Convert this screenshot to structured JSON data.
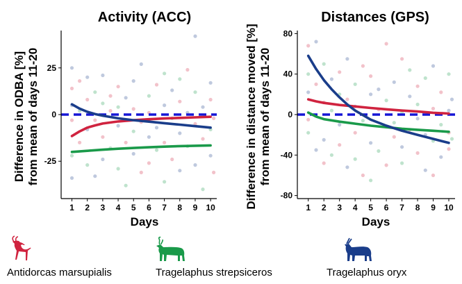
{
  "colors": {
    "antidorcas": "#d0233f",
    "strepsiceros": "#1a9a4a",
    "oryx": "#1a3d8a",
    "reference": "#1616d6"
  },
  "legend": {
    "items": [
      {
        "label": "Antidorcas marsupialis",
        "color": "#d0233f",
        "icon": "springbok-silhouette-icon"
      },
      {
        "label": "Tragelaphus strepsiceros",
        "color": "#1a9a4a",
        "icon": "kudu-silhouette-icon"
      },
      {
        "label": "Tragelaphus oryx",
        "color": "#1a3d8a",
        "icon": "eland-silhouette-icon"
      }
    ]
  },
  "chart_data": [
    {
      "type": "scatter",
      "title": "Activity (ACC)",
      "xlabel": "Days",
      "ylabel_lines": [
        "Difference in ODBA [%]",
        "from mean of days 11-20"
      ],
      "xlim": [
        0.3,
        10.4
      ],
      "ylim": [
        -45,
        45
      ],
      "x_ticks": [
        1,
        2,
        3,
        4,
        5,
        6,
        7,
        8,
        9,
        10
      ],
      "y_ticks": [
        -25,
        0,
        25
      ],
      "reference_line": 0,
      "series": [
        {
          "name": "Antidorcas marsupialis",
          "x": [
            1,
            1.5,
            2,
            2.5,
            3,
            4,
            5,
            6,
            7,
            8,
            9,
            10
          ],
          "y": [
            -11.5,
            -9,
            -7,
            -5.8,
            -4.8,
            -3.7,
            -3,
            -2.5,
            -2.1,
            -1.8,
            -1.5,
            -1.2
          ]
        },
        {
          "name": "Tragelaphus strepsiceros",
          "x": [
            1,
            2,
            3,
            4,
            5,
            6,
            7,
            8,
            9,
            10
          ],
          "y": [
            -20,
            -19.4,
            -18.8,
            -18.3,
            -17.9,
            -17.5,
            -17.2,
            -16.9,
            -16.7,
            -16.5
          ]
        },
        {
          "name": "Tragelaphus oryx",
          "x": [
            1,
            1.5,
            2,
            2.5,
            3,
            4,
            5,
            6,
            7,
            8,
            9,
            10
          ],
          "y": [
            5.5,
            3.2,
            1.5,
            0.3,
            -0.6,
            -2,
            -3,
            -3.8,
            -4.6,
            -5.4,
            -6.2,
            -7
          ]
        }
      ],
      "points": [
        {
          "x": 1,
          "y": 25,
          "s": 2
        },
        {
          "x": 1,
          "y": 14,
          "s": 0
        },
        {
          "x": 1,
          "y": 5,
          "s": 2
        },
        {
          "x": 1,
          "y": -3,
          "s": 0
        },
        {
          "x": 1,
          "y": -22,
          "s": 1
        },
        {
          "x": 1,
          "y": -34,
          "s": 2
        },
        {
          "x": 1.5,
          "y": 18,
          "s": 0
        },
        {
          "x": 1.5,
          "y": 2,
          "s": 1
        },
        {
          "x": 1.5,
          "y": -15,
          "s": 0
        },
        {
          "x": 2,
          "y": 8,
          "s": 0
        },
        {
          "x": 2,
          "y": -8,
          "s": 2
        },
        {
          "x": 2,
          "y": -27,
          "s": 1
        },
        {
          "x": 2,
          "y": 20,
          "s": 2
        },
        {
          "x": 2.5,
          "y": -3,
          "s": 0
        },
        {
          "x": 2.5,
          "y": 12,
          "s": 1
        },
        {
          "x": 2.5,
          "y": -33,
          "s": 2
        },
        {
          "x": 3,
          "y": 6,
          "s": 1
        },
        {
          "x": 3,
          "y": -12,
          "s": 0
        },
        {
          "x": 3,
          "y": -24,
          "s": 2
        },
        {
          "x": 3,
          "y": 21,
          "s": 2
        },
        {
          "x": 3.5,
          "y": 2,
          "s": 0
        },
        {
          "x": 3.5,
          "y": -18,
          "s": 1
        },
        {
          "x": 3.5,
          "y": 10,
          "s": 0
        },
        {
          "x": 4,
          "y": -6,
          "s": 2
        },
        {
          "x": 4,
          "y": -29,
          "s": 1
        },
        {
          "x": 4,
          "y": 15,
          "s": 0
        },
        {
          "x": 4,
          "y": 4,
          "s": 1
        },
        {
          "x": 4.5,
          "y": -15,
          "s": 0
        },
        {
          "x": 4.5,
          "y": 9,
          "s": 2
        },
        {
          "x": 4.5,
          "y": -38,
          "s": 1
        },
        {
          "x": 5,
          "y": 3,
          "s": 0
        },
        {
          "x": 5,
          "y": 18,
          "s": 2
        },
        {
          "x": 5,
          "y": -21,
          "s": 2
        },
        {
          "x": 5,
          "y": -9,
          "s": 1
        },
        {
          "x": 5.5,
          "y": 27,
          "s": 2
        },
        {
          "x": 5.5,
          "y": -4,
          "s": 0
        },
        {
          "x": 5.5,
          "y": -31,
          "s": 0
        },
        {
          "x": 6,
          "y": 10,
          "s": 1
        },
        {
          "x": 6,
          "y": -12,
          "s": 2
        },
        {
          "x": 6,
          "y": -26,
          "s": 0
        },
        {
          "x": 6,
          "y": 1,
          "s": 0
        },
        {
          "x": 6.5,
          "y": 16,
          "s": 0
        },
        {
          "x": 6.5,
          "y": -19,
          "s": 1
        },
        {
          "x": 6.5,
          "y": -7,
          "s": 2
        },
        {
          "x": 7,
          "y": 5,
          "s": 2
        },
        {
          "x": 7,
          "y": -15,
          "s": 0
        },
        {
          "x": 7,
          "y": -36,
          "s": 1
        },
        {
          "x": 7,
          "y": 22,
          "s": 1
        },
        {
          "x": 7.5,
          "y": -2,
          "s": 1
        },
        {
          "x": 7.5,
          "y": 13,
          "s": 2
        },
        {
          "x": 7.5,
          "y": -24,
          "s": 0
        },
        {
          "x": 8,
          "y": 7,
          "s": 0
        },
        {
          "x": 8,
          "y": -10,
          "s": 2
        },
        {
          "x": 8,
          "y": -30,
          "s": 2
        },
        {
          "x": 8,
          "y": 19,
          "s": 1
        },
        {
          "x": 8.5,
          "y": 1,
          "s": 2
        },
        {
          "x": 8.5,
          "y": -17,
          "s": 1
        },
        {
          "x": 8.5,
          "y": 24,
          "s": 0
        },
        {
          "x": 9,
          "y": -5,
          "s": 0
        },
        {
          "x": 9,
          "y": 12,
          "s": 1
        },
        {
          "x": 9,
          "y": -27,
          "s": 2
        },
        {
          "x": 9,
          "y": 42,
          "s": 2
        },
        {
          "x": 9.5,
          "y": 4,
          "s": 2
        },
        {
          "x": 9.5,
          "y": -13,
          "s": 0
        },
        {
          "x": 9.5,
          "y": -40,
          "s": 1
        },
        {
          "x": 10,
          "y": 8,
          "s": 0
        },
        {
          "x": 10,
          "y": -8,
          "s": 1
        },
        {
          "x": 10,
          "y": -22,
          "s": 2
        },
        {
          "x": 10,
          "y": 17,
          "s": 2
        },
        {
          "x": 10.2,
          "y": -2,
          "s": 0
        },
        {
          "x": 10.2,
          "y": -31,
          "s": 0
        }
      ]
    },
    {
      "type": "scatter",
      "title": "Distances (GPS)",
      "xlabel": "Days",
      "ylabel_lines": [
        "Difference in distance moved [%]",
        "from mean of days 11-20"
      ],
      "xlim": [
        0.3,
        10.4
      ],
      "ylim": [
        -83,
        83
      ],
      "x_ticks": [
        1,
        2,
        3,
        4,
        5,
        6,
        7,
        8,
        9,
        10
      ],
      "y_ticks": [
        -80,
        -40,
        0,
        40,
        80
      ],
      "reference_line": 0,
      "series": [
        {
          "name": "Antidorcas marsupialis",
          "x": [
            1,
            1.5,
            2,
            3,
            4,
            5,
            6,
            7,
            8,
            9,
            10
          ],
          "y": [
            15,
            13,
            11.5,
            9.5,
            8,
            6.5,
            5.2,
            4,
            3,
            1.8,
            1
          ]
        },
        {
          "name": "Tragelaphus strepsiceros",
          "x": [
            1,
            1.5,
            2,
            3,
            4,
            5,
            6,
            7,
            8,
            9,
            10
          ],
          "y": [
            2,
            -2,
            -4.5,
            -7,
            -9,
            -11,
            -12.5,
            -14,
            -15,
            -16,
            -17
          ]
        },
        {
          "name": "Tragelaphus oryx",
          "x": [
            1,
            1.5,
            2,
            2.5,
            3,
            3.5,
            4,
            5,
            6,
            7,
            8,
            9,
            10
          ],
          "y": [
            58,
            45,
            34,
            25,
            17,
            10,
            4,
            -5,
            -11,
            -16,
            -20,
            -24,
            -28
          ]
        }
      ],
      "points": [
        {
          "x": 1,
          "y": 68,
          "s": 0
        },
        {
          "x": 1,
          "y": 40,
          "s": 1
        },
        {
          "x": 1,
          "y": 22,
          "s": 2
        },
        {
          "x": 1,
          "y": -5,
          "s": 0
        },
        {
          "x": 1,
          "y": -18,
          "s": 1
        },
        {
          "x": 1.5,
          "y": 72,
          "s": 2
        },
        {
          "x": 1.5,
          "y": 30,
          "s": 0
        },
        {
          "x": 1.5,
          "y": -35,
          "s": 2
        },
        {
          "x": 2,
          "y": 50,
          "s": 1
        },
        {
          "x": 2,
          "y": 12,
          "s": 0
        },
        {
          "x": 2,
          "y": -25,
          "s": 2
        },
        {
          "x": 2,
          "y": -48,
          "s": 0
        },
        {
          "x": 2.5,
          "y": 35,
          "s": 2
        },
        {
          "x": 2.5,
          "y": 4,
          "s": 1
        },
        {
          "x": 2.5,
          "y": -40,
          "s": 1
        },
        {
          "x": 3,
          "y": 42,
          "s": 0
        },
        {
          "x": 3,
          "y": -10,
          "s": 2
        },
        {
          "x": 3,
          "y": -30,
          "s": 0
        },
        {
          "x": 3,
          "y": 20,
          "s": 1
        },
        {
          "x": 3.5,
          "y": 15,
          "s": 0
        },
        {
          "x": 3.5,
          "y": -52,
          "s": 2
        },
        {
          "x": 3.5,
          "y": 55,
          "s": 2
        },
        {
          "x": 4,
          "y": 30,
          "s": 1
        },
        {
          "x": 4,
          "y": -18,
          "s": 0
        },
        {
          "x": 4,
          "y": -44,
          "s": 1
        },
        {
          "x": 4,
          "y": 8,
          "s": 2
        },
        {
          "x": 4.5,
          "y": 48,
          "s": 0
        },
        {
          "x": 4.5,
          "y": -6,
          "s": 1
        },
        {
          "x": 4.5,
          "y": -60,
          "s": 0
        },
        {
          "x": 5,
          "y": 20,
          "s": 2
        },
        {
          "x": 5,
          "y": -28,
          "s": 2
        },
        {
          "x": 5,
          "y": -65,
          "s": 1
        },
        {
          "x": 5,
          "y": 38,
          "s": 0
        },
        {
          "x": 5.5,
          "y": 5,
          "s": 0
        },
        {
          "x": 5.5,
          "y": -36,
          "s": 1
        },
        {
          "x": 5.5,
          "y": 25,
          "s": 2
        },
        {
          "x": 6,
          "y": 70,
          "s": 0
        },
        {
          "x": 6,
          "y": -12,
          "s": 2
        },
        {
          "x": 6,
          "y": -50,
          "s": 0
        },
        {
          "x": 6,
          "y": 14,
          "s": 1
        },
        {
          "x": 6.5,
          "y": 32,
          "s": 2
        },
        {
          "x": 6.5,
          "y": -22,
          "s": 0
        },
        {
          "x": 6.5,
          "y": -8,
          "s": 1
        },
        {
          "x": 7,
          "y": 55,
          "s": 0
        },
        {
          "x": 7,
          "y": 2,
          "s": 1
        },
        {
          "x": 7,
          "y": -32,
          "s": 2
        },
        {
          "x": 7,
          "y": -48,
          "s": 1
        },
        {
          "x": 7.5,
          "y": 18,
          "s": 2
        },
        {
          "x": 7.5,
          "y": -15,
          "s": 0
        },
        {
          "x": 7.5,
          "y": 44,
          "s": 1
        },
        {
          "x": 8,
          "y": 28,
          "s": 0
        },
        {
          "x": 8,
          "y": -4,
          "s": 2
        },
        {
          "x": 8,
          "y": -38,
          "s": 0
        },
        {
          "x": 8,
          "y": 10,
          "s": 1
        },
        {
          "x": 8.5,
          "y": 36,
          "s": 1
        },
        {
          "x": 8.5,
          "y": -20,
          "s": 2
        },
        {
          "x": 8.5,
          "y": -55,
          "s": 2
        },
        {
          "x": 9,
          "y": 48,
          "s": 2
        },
        {
          "x": 9,
          "y": 6,
          "s": 0
        },
        {
          "x": 9,
          "y": -26,
          "s": 1
        },
        {
          "x": 9,
          "y": -60,
          "s": 0
        },
        {
          "x": 9.5,
          "y": 22,
          "s": 0
        },
        {
          "x": 9.5,
          "y": -10,
          "s": 1
        },
        {
          "x": 9.5,
          "y": -42,
          "s": 2
        },
        {
          "x": 10,
          "y": 40,
          "s": 1
        },
        {
          "x": 10,
          "y": 4,
          "s": 2
        },
        {
          "x": 10,
          "y": -18,
          "s": 0
        },
        {
          "x": 10,
          "y": -34,
          "s": 0
        },
        {
          "x": 10.2,
          "y": 15,
          "s": 2
        },
        {
          "x": 10.2,
          "y": -24,
          "s": 1
        }
      ]
    }
  ]
}
